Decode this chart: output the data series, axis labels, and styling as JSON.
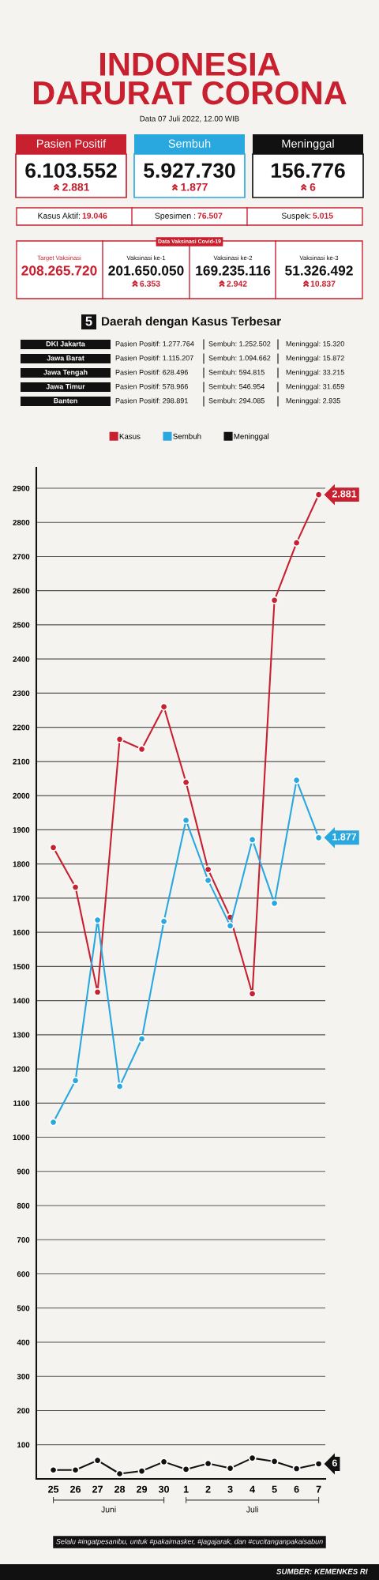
{
  "chart_data": [
    {
      "type": "other",
      "title": "INDONESIA\nDARURAT CORONA",
      "subtitle": "Data 07 Juli 2022, 12.00 WIB",
      "annotations": [
        "Pasien Positif",
        "6.103.552",
        "2.881",
        "Sembuh",
        "5.927.730",
        "1.877",
        "Meninggal",
        "156.776",
        "6",
        "Kasus Aktif:",
        "19.046",
        "Spesimen :",
        "76.507",
        "Suspek:",
        "5.015",
        "Data Vaksinasi Covid-19",
        "Target Vaksinasi",
        "208.265.720",
        "Vaksinasi ke-1",
        "201.650.050",
        "6.353",
        "Vaksinasi ke-2",
        "169.235.116",
        "2.942",
        "Vaksinasi ke-3",
        "51.326.492",
        "10.837",
        "5",
        "Daerah dengan Kasus Terbesar",
        "DKI Jakarta",
        "Pasien Positif: 1.277.764",
        "Sembuh: 1.252.502",
        "Meninggal: 15.320",
        "Jawa Barat",
        "Pasien Positif: 1.115.207",
        "Sembuh: 1.094.662",
        "Meninggal: 15.872",
        "Jawa Tengah",
        "Pasien Positif: 628.496",
        "Sembuh: 594.815",
        "Meninggal: 33.215",
        "Jawa Timur",
        "Pasien Positif: 578.966",
        "Sembuh: 546.954",
        "Meninggal: 31.659",
        "Banten",
        "Pasien Positif: 298.891",
        "Sembuh: 294.085",
        "Meninggal: 2.935"
      ]
    },
    {
      "type": "line",
      "categories": [
        "25",
        "26",
        "27",
        "28",
        "29",
        "30",
        "1",
        "2",
        "3",
        "4",
        "5",
        "6",
        "7"
      ],
      "series": [
        {
          "name": "Kasus",
          "color": "#c8202f",
          "values": [
            1848,
            1732,
            1425,
            2165,
            2136,
            2260,
            2039,
            1784,
            1644,
            1420,
            2572,
            2740,
            2881
          ]
        },
        {
          "name": "Sembuh",
          "color": "#29a8df",
          "values": [
            1044,
            1166,
            1636,
            1149,
            1288,
            1632,
            1928,
            1752,
            1619,
            1871,
            1685,
            2045,
            1877
          ]
        },
        {
          "name": "Meninggal",
          "color": "#111111",
          "values": [
            26,
            26,
            54,
            15,
            23,
            50,
            28,
            45,
            31,
            61,
            51,
            30,
            44
          ]
        }
      ],
      "ylim": [
        0,
        2960
      ],
      "yticks": [
        100,
        200,
        300,
        400,
        500,
        600,
        700,
        800,
        900,
        1000,
        1100,
        1200,
        1300,
        1400,
        1500,
        1600,
        1700,
        1800,
        1900,
        2000,
        2100,
        2200,
        2300,
        2400,
        2500,
        2600,
        2700,
        2800,
        2900
      ],
      "grid": "y",
      "legend": "top",
      "marker": "circle",
      "annotations": [
        "Juni",
        "Juli",
        "Selalu #ingatpesanibu, untuk #pakaimasker, #jagajarak, dan #cucitanganpakaisabun",
        "SUMBER: KEMENKES RI",
        {
          "text": "2.881",
          "x": "7",
          "y": 2881
        },
        {
          "text": "1.877",
          "x": "7",
          "y": 1877
        },
        {
          "text": "6",
          "x": "7",
          "y": 44
        }
      ]
    }
  ]
}
